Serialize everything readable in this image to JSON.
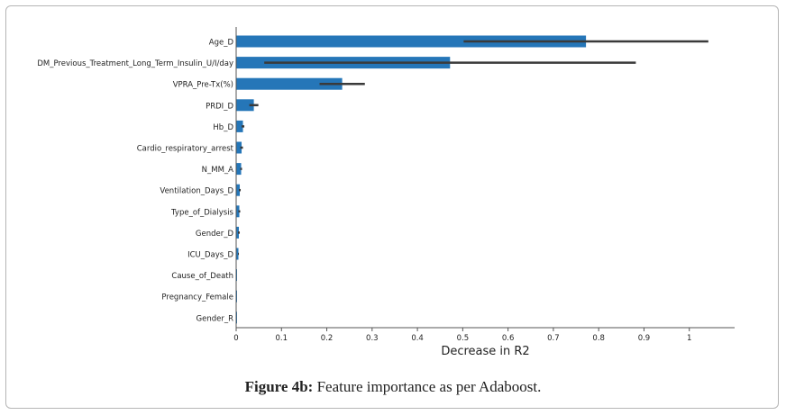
{
  "colors": {
    "bar": "#2576b8",
    "error_bar": "#3a3a3a",
    "axis": "#555555",
    "text": "#222222"
  },
  "chart_data": {
    "type": "bar",
    "orientation": "horizontal",
    "categories": [
      "Age_D",
      "DM_Previous_Treatment_Long_Term_Insulin_U/I/day",
      "VPRA_Pre-Tx(%)",
      "PRDI_D",
      "Hb_D",
      "Cardio_respiratory_arrest",
      "N_MM_A",
      "Ventilation_Days_D",
      "Type_of_Dialysis",
      "Gender_D",
      "ICU_Days_D",
      "Cause_of_Death",
      "Pregnancy_Female",
      "Gender_R"
    ],
    "values": [
      0.772,
      0.472,
      0.234,
      0.039,
      0.015,
      0.012,
      0.011,
      0.008,
      0.007,
      0.006,
      0.005,
      0.002,
      0.001,
      0.001
    ],
    "errors": [
      0.27,
      0.41,
      0.05,
      0.01,
      0.003,
      0.003,
      0.002,
      0.002,
      0.002,
      0.002,
      0.001,
      0.0,
      0.0,
      0.0
    ],
    "xlabel": "Decrease in R2",
    "ylabel": "",
    "xlim": [
      0,
      1.1
    ],
    "xticks": [
      0,
      0.1,
      0.2,
      0.3,
      0.4,
      0.5,
      0.6,
      0.7,
      0.8,
      0.9,
      1
    ],
    "xtick_labels": [
      "0",
      "0.1",
      "0.2",
      "0.3",
      "0.4",
      "0.5",
      "0.6",
      "0.7",
      "0.8",
      "0.9",
      "1"
    ],
    "grid": false,
    "legend": "none"
  },
  "caption": {
    "label": "Figure 4b:",
    "text": " Feature importance as per Adaboost."
  }
}
